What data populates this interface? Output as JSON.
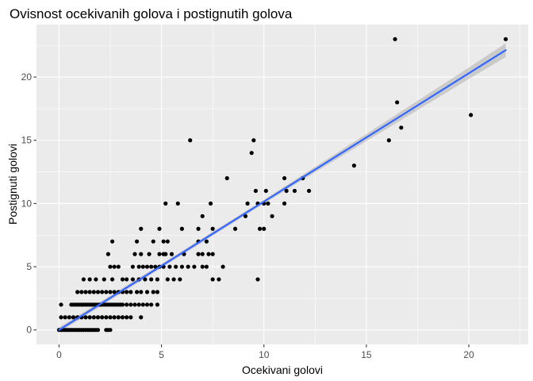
{
  "chart_data": {
    "type": "scatter",
    "title": "Ovisnost ocekivanih golova i postignutih golova",
    "xlabel": "Ocekivani golovi",
    "ylabel": "Postignuti golovi",
    "xlim": [
      -1.1,
      22.9
    ],
    "ylim": [
      -1.15,
      24.15
    ],
    "x_ticks": [
      0,
      5,
      10,
      15,
      20
    ],
    "y_ticks": [
      0,
      5,
      10,
      15,
      20
    ],
    "x_tick_labels": [
      "0",
      "5",
      "10",
      "15",
      "20"
    ],
    "y_tick_labels": [
      "0",
      "5",
      "10",
      "15",
      "20"
    ],
    "grid": true,
    "background_color": "#EBEBEB",
    "point_color": "#000000",
    "fit_line_color": "#3366FF",
    "ribbon_color": "#999999",
    "smooth": {
      "method": "linear",
      "x": [
        0,
        5,
        10,
        15,
        20,
        21.8
      ],
      "y": [
        0,
        5.07,
        10.15,
        15.22,
        20.3,
        22.13
      ],
      "ci_halfwidth": [
        0.2,
        0.16,
        0.15,
        0.28,
        0.45,
        0.55
      ]
    },
    "points": [
      [
        0,
        0
      ],
      [
        0.1,
        0
      ],
      [
        0.2,
        0
      ],
      [
        0.3,
        0
      ],
      [
        0.4,
        0
      ],
      [
        0.5,
        0
      ],
      [
        0.6,
        0
      ],
      [
        0.7,
        0
      ],
      [
        0.8,
        0
      ],
      [
        0.9,
        0
      ],
      [
        1.0,
        0
      ],
      [
        1.1,
        0
      ],
      [
        1.2,
        0
      ],
      [
        1.3,
        0
      ],
      [
        1.4,
        0
      ],
      [
        1.5,
        0
      ],
      [
        1.6,
        0
      ],
      [
        1.7,
        0
      ],
      [
        1.8,
        0
      ],
      [
        1.9,
        0
      ],
      [
        2.3,
        0
      ],
      [
        2.4,
        0
      ],
      [
        2.5,
        0
      ],
      [
        0.1,
        1
      ],
      [
        0.3,
        1
      ],
      [
        0.5,
        1
      ],
      [
        0.7,
        1
      ],
      [
        0.9,
        1
      ],
      [
        1.1,
        1
      ],
      [
        1.3,
        1
      ],
      [
        1.5,
        1
      ],
      [
        1.7,
        1
      ],
      [
        1.9,
        1
      ],
      [
        2.1,
        1
      ],
      [
        2.3,
        1
      ],
      [
        2.5,
        1
      ],
      [
        2.7,
        1
      ],
      [
        2.9,
        1
      ],
      [
        3.1,
        1
      ],
      [
        3.3,
        1
      ],
      [
        3.5,
        1
      ],
      [
        4.0,
        1
      ],
      [
        0.1,
        2
      ],
      [
        0.6,
        2
      ],
      [
        0.7,
        2
      ],
      [
        0.8,
        2
      ],
      [
        0.9,
        2
      ],
      [
        1.0,
        2
      ],
      [
        1.1,
        2
      ],
      [
        1.2,
        2
      ],
      [
        1.3,
        2
      ],
      [
        1.4,
        2
      ],
      [
        1.5,
        2
      ],
      [
        1.6,
        2
      ],
      [
        1.7,
        2
      ],
      [
        1.8,
        2
      ],
      [
        1.9,
        2
      ],
      [
        2.0,
        2
      ],
      [
        2.1,
        2
      ],
      [
        2.2,
        2
      ],
      [
        2.3,
        2
      ],
      [
        2.4,
        2
      ],
      [
        2.5,
        2
      ],
      [
        2.6,
        2
      ],
      [
        2.7,
        2
      ],
      [
        2.8,
        2
      ],
      [
        2.9,
        2
      ],
      [
        3.0,
        2
      ],
      [
        3.1,
        2
      ],
      [
        3.3,
        2
      ],
      [
        3.5,
        2
      ],
      [
        3.7,
        2
      ],
      [
        3.9,
        2
      ],
      [
        4.1,
        2
      ],
      [
        4.3,
        2
      ],
      [
        4.5,
        2
      ],
      [
        4.8,
        2
      ],
      [
        0.9,
        3
      ],
      [
        1.1,
        3
      ],
      [
        1.3,
        3
      ],
      [
        1.5,
        3
      ],
      [
        1.7,
        3
      ],
      [
        1.9,
        3
      ],
      [
        2.1,
        3
      ],
      [
        2.3,
        3
      ],
      [
        2.5,
        3
      ],
      [
        2.7,
        3
      ],
      [
        2.9,
        3
      ],
      [
        3.1,
        3
      ],
      [
        3.3,
        3
      ],
      [
        3.5,
        3
      ],
      [
        3.8,
        3
      ],
      [
        4.0,
        3
      ],
      [
        4.3,
        3
      ],
      [
        4.6,
        3
      ],
      [
        4.8,
        3
      ],
      [
        1.2,
        4
      ],
      [
        1.5,
        4
      ],
      [
        1.8,
        4
      ],
      [
        2.2,
        4
      ],
      [
        2.6,
        4
      ],
      [
        3.1,
        4
      ],
      [
        3.3,
        4
      ],
      [
        3.6,
        4
      ],
      [
        3.9,
        4
      ],
      [
        4.2,
        4
      ],
      [
        4.5,
        4
      ],
      [
        4.8,
        4
      ],
      [
        5.3,
        4
      ],
      [
        5.6,
        4
      ],
      [
        5.9,
        4
      ],
      [
        7.5,
        4
      ],
      [
        7.8,
        4
      ],
      [
        9.7,
        4
      ],
      [
        2.5,
        5
      ],
      [
        2.7,
        5
      ],
      [
        2.9,
        5
      ],
      [
        3.6,
        5
      ],
      [
        3.9,
        5
      ],
      [
        4.1,
        5
      ],
      [
        4.3,
        5
      ],
      [
        4.5,
        5
      ],
      [
        4.7,
        5
      ],
      [
        4.9,
        5
      ],
      [
        5.1,
        5
      ],
      [
        5.4,
        5
      ],
      [
        5.7,
        5
      ],
      [
        6.0,
        5
      ],
      [
        6.3,
        5
      ],
      [
        6.6,
        5
      ],
      [
        7.0,
        5
      ],
      [
        7.2,
        5
      ],
      [
        8.0,
        5
      ],
      [
        2.4,
        6
      ],
      [
        3.7,
        6
      ],
      [
        4.0,
        6
      ],
      [
        4.4,
        6
      ],
      [
        4.9,
        6
      ],
      [
        5.1,
        6
      ],
      [
        5.2,
        6
      ],
      [
        5.5,
        6
      ],
      [
        6.1,
        6
      ],
      [
        6.8,
        6
      ],
      [
        7.0,
        6
      ],
      [
        7.3,
        6
      ],
      [
        7.5,
        6
      ],
      [
        2.6,
        7
      ],
      [
        3.8,
        7
      ],
      [
        4.6,
        7
      ],
      [
        5.1,
        7
      ],
      [
        5.3,
        7
      ],
      [
        6.8,
        7
      ],
      [
        7.2,
        7
      ],
      [
        4.0,
        8
      ],
      [
        4.9,
        8
      ],
      [
        6.0,
        8
      ],
      [
        6.8,
        8
      ],
      [
        7.5,
        8
      ],
      [
        8.6,
        8
      ],
      [
        9.8,
        8
      ],
      [
        10.0,
        8
      ],
      [
        7.0,
        9
      ],
      [
        9.1,
        9
      ],
      [
        10.4,
        9
      ],
      [
        5.2,
        10
      ],
      [
        5.8,
        10
      ],
      [
        7.4,
        10
      ],
      [
        9.2,
        10
      ],
      [
        9.7,
        10
      ],
      [
        10.0,
        10
      ],
      [
        10.2,
        10
      ],
      [
        11.0,
        10
      ],
      [
        9.6,
        11
      ],
      [
        10.1,
        11
      ],
      [
        11.1,
        11
      ],
      [
        11.5,
        11
      ],
      [
        12.2,
        11
      ],
      [
        8.2,
        12
      ],
      [
        11.0,
        12
      ],
      [
        11.9,
        12
      ],
      [
        14.4,
        13
      ],
      [
        9.4,
        14
      ],
      [
        6.4,
        15
      ],
      [
        9.5,
        15
      ],
      [
        16.1,
        15
      ],
      [
        16.7,
        16
      ],
      [
        20.1,
        17
      ],
      [
        16.5,
        18
      ],
      [
        16.4,
        23
      ],
      [
        21.8,
        23
      ]
    ]
  }
}
